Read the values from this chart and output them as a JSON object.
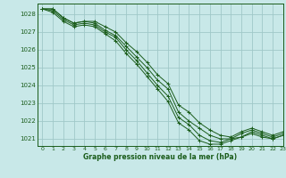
{
  "title": "Graphe pression niveau de la mer (hPa)",
  "bg_color": "#c8e8e8",
  "grid_color": "#a0c8c8",
  "line_color": "#1a5c1a",
  "xlim": [
    -0.5,
    23
  ],
  "ylim": [
    1020.6,
    1028.6
  ],
  "yticks": [
    1021,
    1022,
    1023,
    1024,
    1025,
    1026,
    1027,
    1028
  ],
  "xticks": [
    0,
    1,
    2,
    3,
    4,
    5,
    6,
    7,
    8,
    9,
    10,
    11,
    12,
    13,
    14,
    15,
    16,
    17,
    18,
    19,
    20,
    21,
    22,
    23
  ],
  "series": [
    [
      1028.3,
      1028.3,
      1027.8,
      1027.5,
      1027.6,
      1027.5,
      1027.1,
      1026.8,
      1026.2,
      1025.6,
      1025.0,
      1024.3,
      1023.8,
      1022.5,
      1022.0,
      1021.6,
      1021.2,
      1021.0,
      1021.0,
      1021.3,
      1021.5,
      1021.3,
      1021.1,
      1021.3
    ],
    [
      1028.3,
      1028.3,
      1027.8,
      1027.5,
      1027.6,
      1027.6,
      1027.3,
      1027.0,
      1026.4,
      1025.9,
      1025.3,
      1024.6,
      1024.1,
      1022.9,
      1022.5,
      1021.9,
      1021.5,
      1021.2,
      1021.1,
      1021.4,
      1021.6,
      1021.4,
      1021.2,
      1021.4
    ],
    [
      1028.3,
      1028.2,
      1027.7,
      1027.4,
      1027.5,
      1027.4,
      1027.0,
      1026.7,
      1026.0,
      1025.4,
      1024.7,
      1024.0,
      1023.4,
      1022.2,
      1021.8,
      1021.2,
      1020.9,
      1020.8,
      1021.0,
      1021.1,
      1021.4,
      1021.2,
      1021.0,
      1021.2
    ],
    [
      1028.3,
      1028.1,
      1027.6,
      1027.3,
      1027.4,
      1027.3,
      1026.9,
      1026.5,
      1025.8,
      1025.2,
      1024.5,
      1023.8,
      1023.1,
      1021.9,
      1021.5,
      1020.9,
      1020.7,
      1020.7,
      1020.9,
      1021.1,
      1021.3,
      1021.1,
      1021.0,
      1021.2
    ]
  ]
}
